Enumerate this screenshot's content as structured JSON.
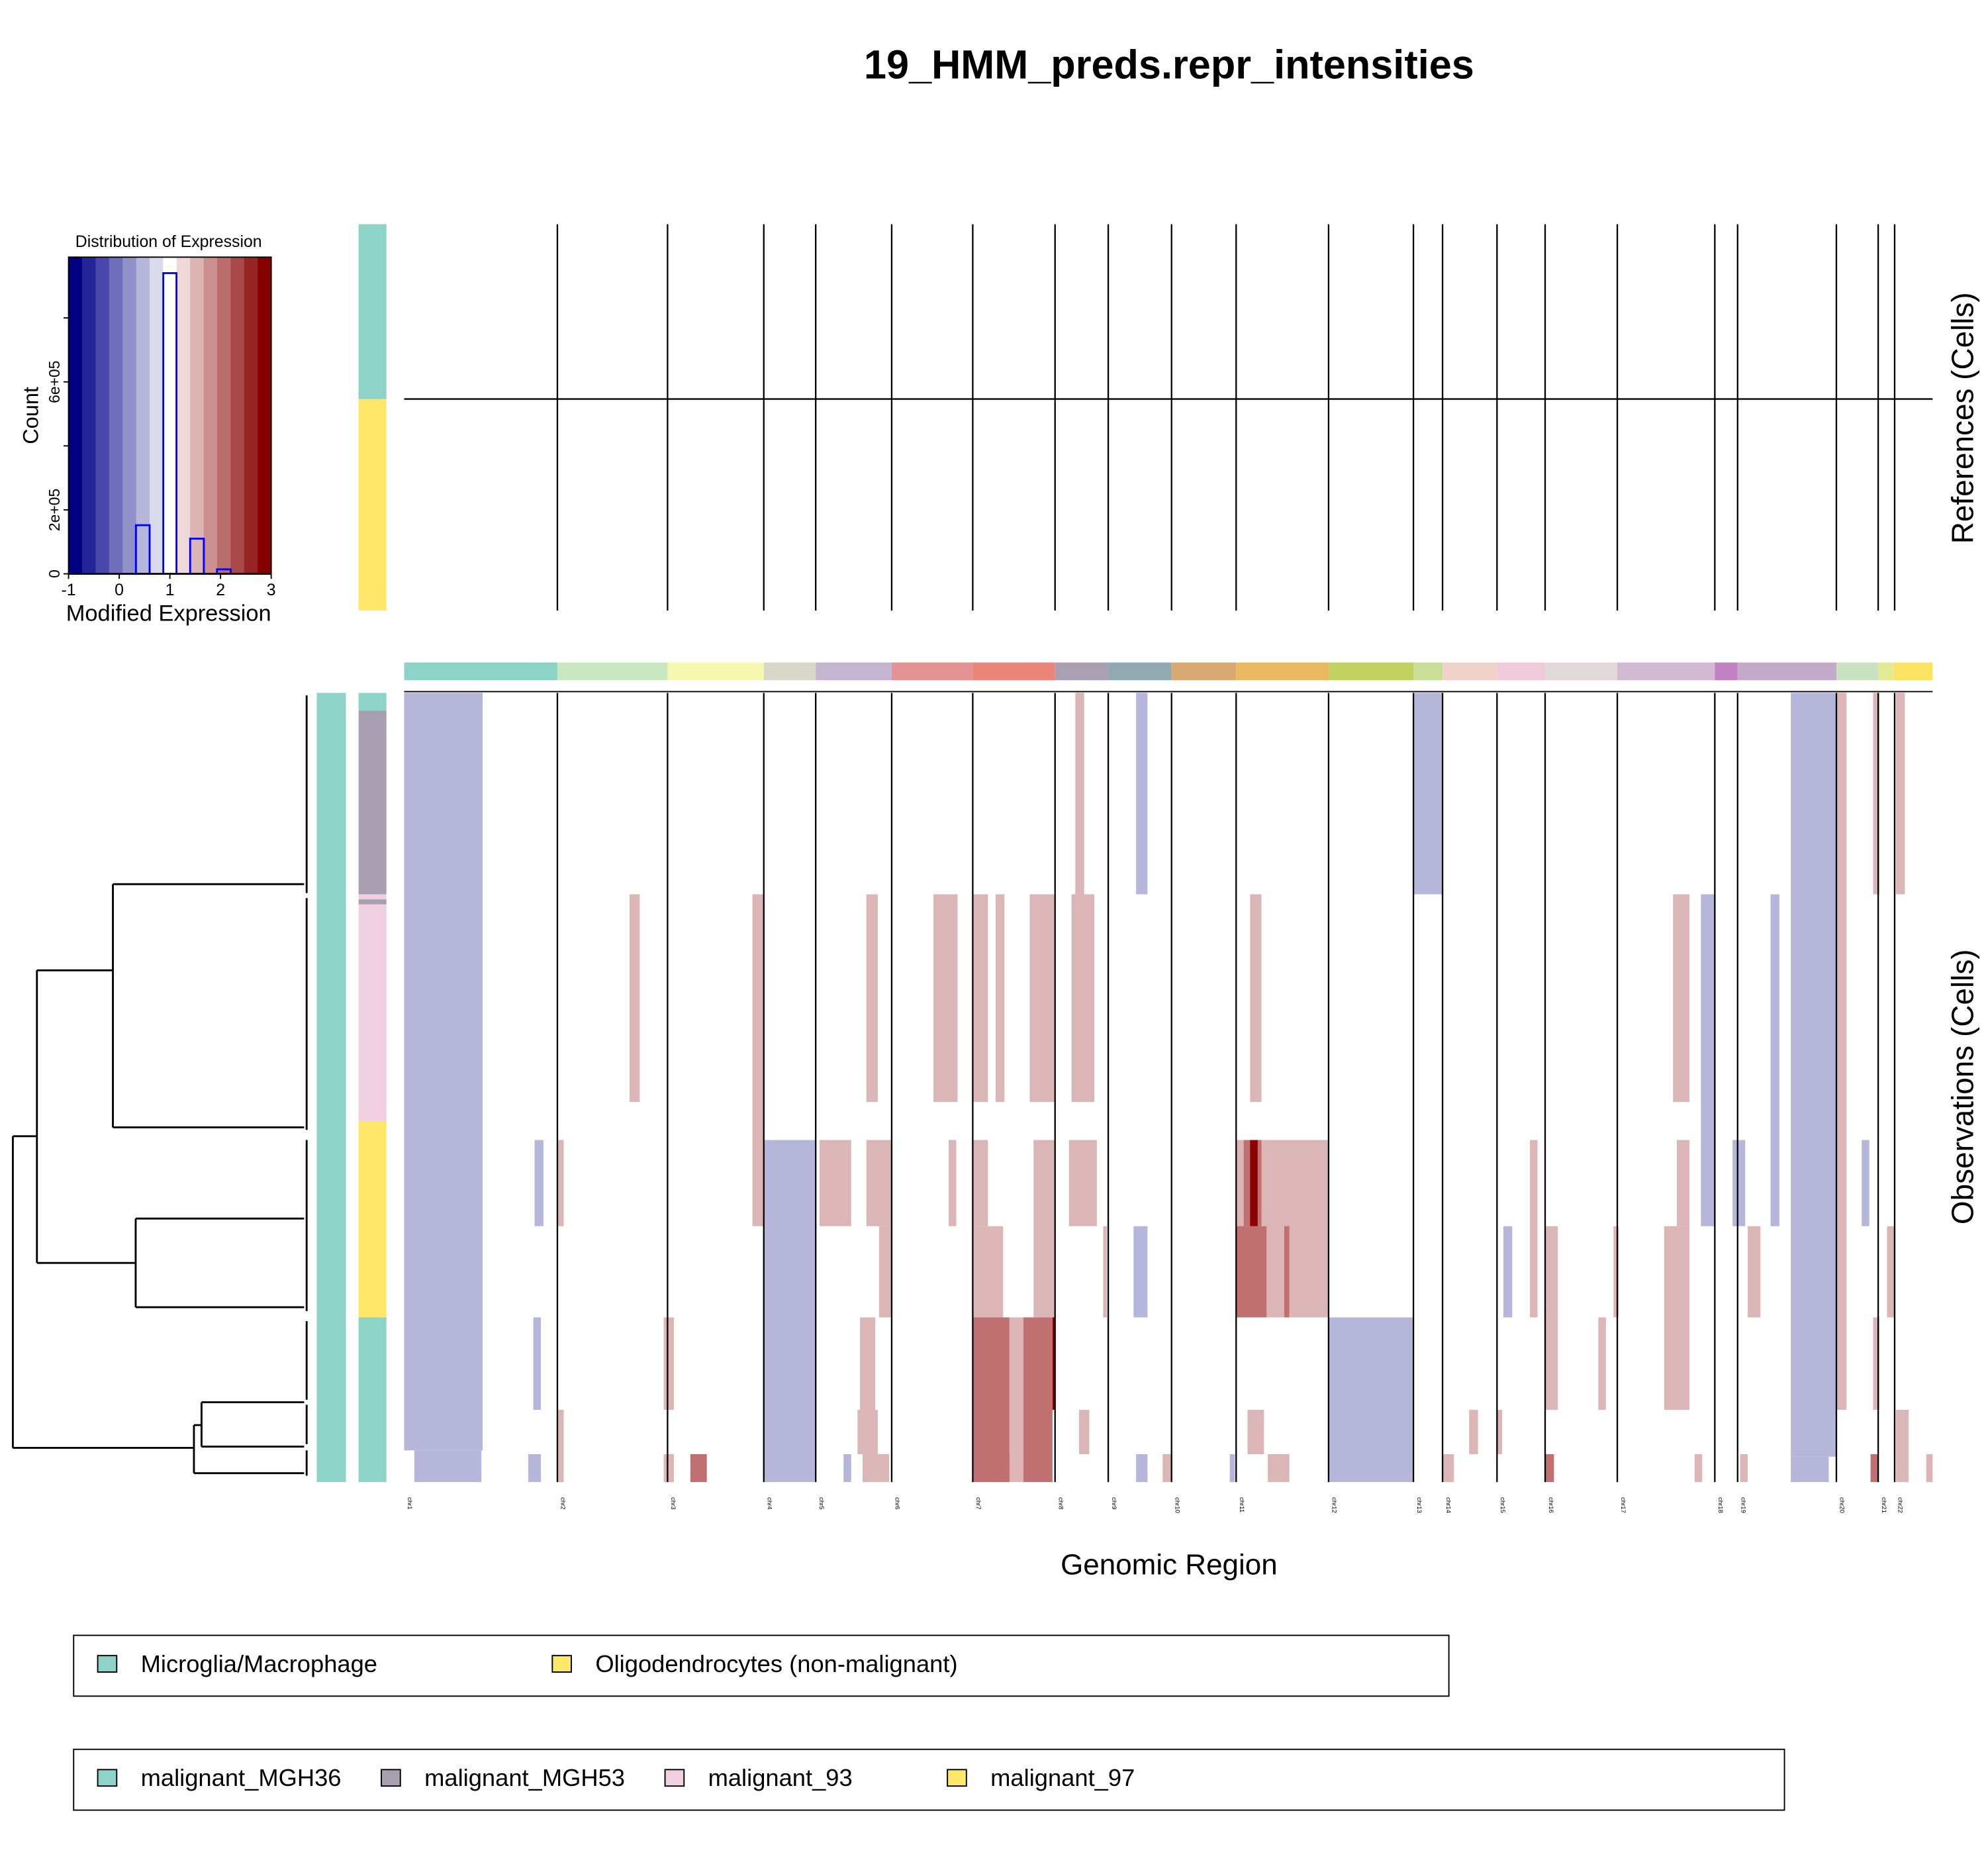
{
  "title": "19_HMM_preds.repr_intensities",
  "xlabel": "Genomic Region",
  "ref_label": "References (Cells)",
  "obs_label": "Observations (Cells)",
  "histogram": {
    "title": "Distribution of Expression",
    "xlabel": "Modified Expression",
    "ylabel": "Count",
    "xlim": [
      -1,
      3
    ],
    "ylim": [
      0,
      990000
    ],
    "xticks": [
      "-1",
      "0",
      "1",
      "2",
      "3"
    ],
    "yticks": [
      {
        "value": 0,
        "label": "0"
      },
      {
        "value": 200000,
        "label": "2e+05"
      },
      {
        "value": 400000,
        "label": ""
      },
      {
        "value": 600000,
        "label": "6e+05"
      },
      {
        "value": 800000,
        "label": ""
      }
    ],
    "bar_color": "#0000ff",
    "color_bins": [
      "#000080",
      "#24249a",
      "#4848ab",
      "#6d6db9",
      "#9191c9",
      "#b6b6da",
      "#dadaed",
      "#ffffff",
      "#eed8d8",
      "#dcb4b4",
      "#cb9191",
      "#ba6d6d",
      "#a84848",
      "#972424",
      "#860000"
    ],
    "bars": [
      {
        "x0": 0.33,
        "x1": 0.6,
        "count": 152000
      },
      {
        "x0": 0.87,
        "x1": 1.13,
        "count": 940000
      },
      {
        "x0": 1.4,
        "x1": 1.67,
        "count": 110000
      },
      {
        "x0": 1.93,
        "x1": 2.2,
        "count": 14000
      }
    ]
  },
  "chart_data": {
    "type": "heatmap",
    "title": "19_HMM_preds.repr_intensities",
    "xlabel": "Genomic Region",
    "value_colors": {
      "0.5": "#b6b6da",
      "1.5": "#dcb6b6",
      "2": "#c07070",
      "3": "#8b0000"
    },
    "chromosomes": [
      {
        "name": "chr1",
        "start": 0,
        "color": "#8ed3c7"
      },
      {
        "name": "chr2",
        "start": 726,
        "color": "#c9e7c1"
      },
      {
        "name": "chr3",
        "start": 1248,
        "color": "#f8f7b0"
      },
      {
        "name": "chr4",
        "start": 1704,
        "color": "#d9d7c9"
      },
      {
        "name": "chr5",
        "start": 1950,
        "color": "#c4b5d1"
      },
      {
        "name": "chr6",
        "start": 2310,
        "color": "#e39393"
      },
      {
        "name": "chr7",
        "start": 2694,
        "color": "#ea857a"
      },
      {
        "name": "chr8",
        "start": 3084,
        "color": "#a9a1b1"
      },
      {
        "name": "chr9",
        "start": 3336,
        "color": "#92a9b1"
      },
      {
        "name": "chr10",
        "start": 3636,
        "color": "#d6aa72"
      },
      {
        "name": "chr11",
        "start": 3942,
        "color": "#e9ba62"
      },
      {
        "name": "chr12",
        "start": 4380,
        "color": "#c2d262"
      },
      {
        "name": "chr13",
        "start": 4782,
        "color": "#cade98"
      },
      {
        "name": "chr14",
        "start": 4920,
        "color": "#f0d2ca"
      },
      {
        "name": "chr15",
        "start": 5178,
        "color": "#f1cadb"
      },
      {
        "name": "chr16",
        "start": 5406,
        "color": "#e1d9d9"
      },
      {
        "name": "chr17",
        "start": 5748,
        "color": "#d1b9d1"
      },
      {
        "name": "chr18",
        "start": 6210,
        "color": "#c282c4"
      },
      {
        "name": "chr19",
        "start": 6318,
        "color": "#c3aac9"
      },
      {
        "name": "chr20",
        "start": 6786,
        "color": "#cae2c2"
      },
      {
        "name": "chr21",
        "start": 6984,
        "color": "#e2ea92"
      },
      {
        "name": "chr22",
        "start": 7062,
        "color": "#fae362"
      }
    ],
    "genome_end": 7242,
    "reference_cells": 305,
    "reference_groups": [
      {
        "label": "Microglia/Macrophage",
        "cells": [
          0,
          138
        ],
        "color": "#8ed3c7"
      },
      {
        "label": "Oligodendrocytes (non-malignant)",
        "cells": [
          138,
          305
        ],
        "color": "#ffe76a"
      }
    ],
    "observation_cells": 623,
    "observation_groups": [
      {
        "label": "malignant_MGH36",
        "cells": [
          0,
          14
        ],
        "color": "#8ed3c7"
      },
      {
        "label": "malignant_MGH53",
        "cells": [
          14,
          159
        ],
        "color": "#a89fb0"
      },
      {
        "label": "malignant_93",
        "cells": [
          159,
          163
        ],
        "color": "#f0d0e0"
      },
      {
        "label": "malignant_MGH53",
        "cells": [
          163,
          167
        ],
        "color": "#a89fb0"
      },
      {
        "label": "malignant_93",
        "cells": [
          167,
          338
        ],
        "color": "#f0d0e0"
      },
      {
        "label": "malignant_97",
        "cells": [
          338,
          493
        ],
        "color": "#ffe76a"
      },
      {
        "label": "malignant_MGH36",
        "cells": [
          493,
          623
        ],
        "color": "#8ed3c7"
      }
    ],
    "segments_columns": [
      "gene_start",
      "gene_end",
      "cell_start",
      "cell_end",
      "value"
    ],
    "segments": [
      [
        0,
        372,
        0,
        598,
        0.5
      ],
      [
        48,
        366,
        598,
        623,
        0.5
      ],
      [
        3180,
        3222,
        0,
        159,
        1.5
      ],
      [
        3468,
        3522,
        0,
        159,
        0.5
      ],
      [
        4782,
        4920,
        0,
        159,
        0.5
      ],
      [
        6570,
        6786,
        0,
        603,
        0.5
      ],
      [
        6570,
        6750,
        603,
        623,
        0.5
      ],
      [
        6786,
        6834,
        0,
        493,
        1.5
      ],
      [
        6960,
        6990,
        0,
        159,
        1.5
      ],
      [
        7068,
        7110,
        0,
        159,
        1.5
      ],
      [
        1068,
        1116,
        159,
        323,
        1.5
      ],
      [
        1650,
        1704,
        159,
        421,
        1.5
      ],
      [
        2190,
        2244,
        159,
        323,
        1.5
      ],
      [
        2508,
        2622,
        159,
        323,
        1.5
      ],
      [
        2694,
        2766,
        159,
        323,
        1.5
      ],
      [
        2802,
        2844,
        159,
        323,
        1.5
      ],
      [
        2964,
        3084,
        159,
        323,
        1.5
      ],
      [
        3162,
        3270,
        159,
        323,
        1.5
      ],
      [
        4008,
        4062,
        159,
        323,
        1.5
      ],
      [
        6012,
        6090,
        159,
        323,
        1.5
      ],
      [
        6144,
        6210,
        159,
        421,
        0.5
      ],
      [
        6474,
        6516,
        159,
        421,
        0.5
      ],
      [
        618,
        660,
        353,
        421,
        0.5
      ],
      [
        726,
        756,
        353,
        421,
        1.5
      ],
      [
        1704,
        1950,
        353,
        623,
        0.5
      ],
      [
        1968,
        2118,
        353,
        421,
        1.5
      ],
      [
        2190,
        2310,
        353,
        421,
        1.5
      ],
      [
        2250,
        2310,
        421,
        493,
        1.5
      ],
      [
        2580,
        2616,
        353,
        421,
        1.5
      ],
      [
        2694,
        2766,
        353,
        421,
        1.5
      ],
      [
        2982,
        3084,
        353,
        493,
        1.5
      ],
      [
        3150,
        3282,
        353,
        421,
        1.5
      ],
      [
        3942,
        4380,
        353,
        493,
        1.5
      ],
      [
        3978,
        4062,
        353,
        421,
        2
      ],
      [
        4008,
        4044,
        353,
        421,
        3
      ],
      [
        3942,
        4086,
        421,
        493,
        2
      ],
      [
        4170,
        4194,
        421,
        493,
        2
      ],
      [
        5334,
        5370,
        353,
        493,
        1.5
      ],
      [
        5406,
        5466,
        421,
        566,
        1.5
      ],
      [
        6030,
        6090,
        353,
        421,
        1.5
      ],
      [
        5970,
        6090,
        421,
        566,
        1.5
      ],
      [
        6294,
        6354,
        353,
        421,
        0.5
      ],
      [
        6366,
        6426,
        421,
        493,
        1.5
      ],
      [
        6906,
        6942,
        353,
        421,
        0.5
      ],
      [
        7026,
        7062,
        421,
        493,
        1.5
      ],
      [
        6786,
        6834,
        493,
        566,
        1.5
      ],
      [
        2694,
        2838,
        421,
        493,
        1.5
      ],
      [
        3312,
        3330,
        421,
        493,
        1.5
      ],
      [
        3456,
        3522,
        421,
        493,
        0.5
      ],
      [
        5208,
        5250,
        421,
        493,
        0.5
      ],
      [
        5730,
        5754,
        421,
        493,
        1.5
      ],
      [
        1230,
        1278,
        493,
        566,
        1.5
      ],
      [
        612,
        648,
        493,
        566,
        0.5
      ],
      [
        2160,
        2232,
        493,
        566,
        1.5
      ],
      [
        2694,
        2868,
        493,
        623,
        2
      ],
      [
        2868,
        2934,
        493,
        623,
        1.5
      ],
      [
        2934,
        3072,
        493,
        623,
        2
      ],
      [
        3072,
        3084,
        493,
        566,
        3
      ],
      [
        4380,
        4782,
        493,
        623,
        0.5
      ],
      [
        5658,
        5694,
        493,
        566,
        1.5
      ],
      [
        6960,
        6990,
        493,
        566,
        1.5
      ],
      [
        7068,
        7128,
        566,
        623,
        1.5
      ],
      [
        5046,
        5088,
        566,
        601,
        1.5
      ],
      [
        3996,
        4074,
        566,
        601,
        1.5
      ],
      [
        3198,
        3246,
        566,
        601,
        1.5
      ],
      [
        2148,
        2244,
        566,
        601,
        1.5
      ],
      [
        726,
        756,
        566,
        623,
        1.5
      ],
      [
        5178,
        5202,
        566,
        601,
        1.5
      ],
      [
        588,
        648,
        601,
        623,
        0.5
      ],
      [
        1230,
        1278,
        601,
        623,
        1.5
      ],
      [
        1356,
        1434,
        601,
        623,
        2
      ],
      [
        2082,
        2118,
        601,
        623,
        0.5
      ],
      [
        2172,
        2298,
        601,
        623,
        1.5
      ],
      [
        2766,
        2868,
        601,
        623,
        2
      ],
      [
        3594,
        3636,
        601,
        623,
        1.5
      ],
      [
        3468,
        3522,
        601,
        623,
        0.5
      ],
      [
        3912,
        3936,
        601,
        623,
        0.5
      ],
      [
        4092,
        4194,
        601,
        623,
        1.5
      ],
      [
        4920,
        4974,
        601,
        623,
        1.5
      ],
      [
        5406,
        5448,
        601,
        623,
        2
      ],
      [
        6114,
        6150,
        601,
        623,
        1.5
      ],
      [
        6330,
        6366,
        601,
        623,
        1.5
      ],
      [
        6948,
        6984,
        601,
        623,
        2
      ],
      [
        7212,
        7242,
        601,
        623,
        1.5
      ]
    ]
  },
  "legend_references": [
    {
      "label": "Microglia/Macrophage",
      "color": "#8ed3c7"
    },
    {
      "label": "Oligodendrocytes (non-malignant)",
      "color": "#ffe76a"
    }
  ],
  "legend_observations": [
    {
      "label": "malignant_MGH36",
      "color": "#8ed3c7"
    },
    {
      "label": "malignant_MGH53",
      "color": "#a89fb0"
    },
    {
      "label": "malignant_93",
      "color": "#f0d0e0"
    },
    {
      "label": "malignant_97",
      "color": "#ffe76a"
    }
  ]
}
